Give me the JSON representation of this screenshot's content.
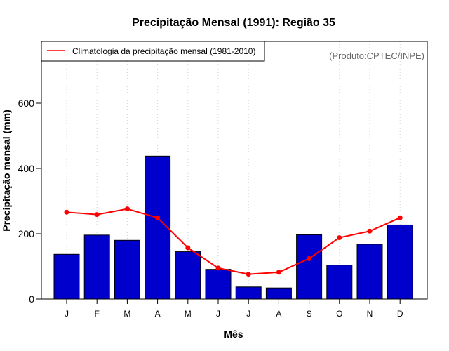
{
  "chart_data": {
    "type": "bar",
    "title": "Precipitação Mensal (1991): Região 35",
    "xlabel": "Mês",
    "ylabel": "Precipitação mensal (mm)",
    "categories": [
      "J",
      "F",
      "M",
      "A",
      "M",
      "J",
      "J",
      "A",
      "S",
      "O",
      "N",
      "D"
    ],
    "ylim": [
      0,
      770
    ],
    "yticks": [
      0,
      200,
      400,
      600
    ],
    "grid": "vertical dotted",
    "series": [
      {
        "name": "Precipitação mensal (1991)",
        "kind": "bar",
        "color": "#0000CC",
        "values": [
          137,
          196,
          180,
          438,
          145,
          91,
          37,
          34,
          197,
          104,
          168,
          227
        ]
      },
      {
        "name": "Climatologia da precipitação mensal (1981-2010)",
        "kind": "line",
        "color": "#FF0000",
        "values": [
          266,
          259,
          276,
          249,
          157,
          95,
          76,
          82,
          124,
          188,
          208,
          249
        ]
      }
    ],
    "legend": {
      "position": "top-left",
      "entries": [
        "Climatologia da precipitação mensal (1981-2010)"
      ]
    },
    "annotation": "(Produto:CPTEC/INPE)"
  }
}
